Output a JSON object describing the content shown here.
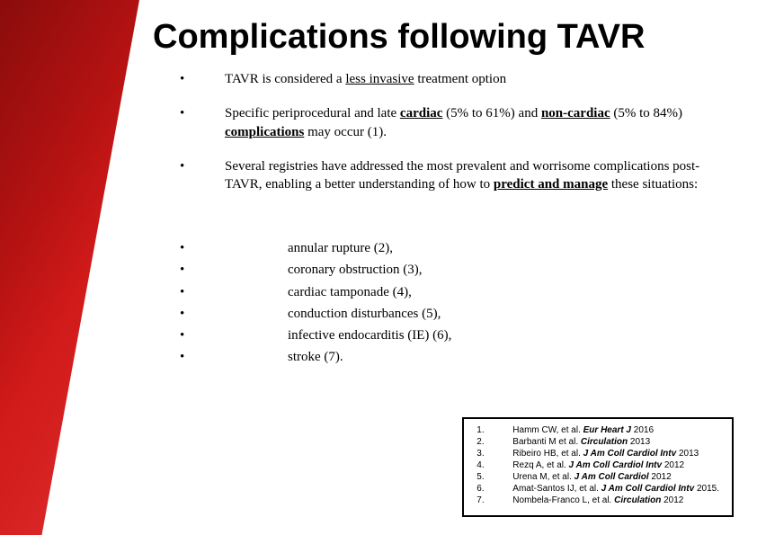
{
  "title": "Complications following TAVR",
  "bullets": [
    {
      "dot": "•",
      "html": "TAVR is considered a <span class='u'>less invasive</span> treatment option"
    },
    {
      "dot": "•",
      "html": "Specific periprocedural and late <span class='u b'>cardiac</span> (5% to 61%) and <span class='u b'>non-cardiac</span> (5% to 84%) <span class='u b'>complications</span> may occur (1)."
    },
    {
      "dot": "•",
      "html": "Several registries have addressed the most prevalent and worrisome complications post-TAVR, enabling a better understanding of how to <span class='u b'>predict and manage</span> these situations:"
    }
  ],
  "subBullets": [
    {
      "dot": "•",
      "text": "annular rupture (2),"
    },
    {
      "dot": "•",
      "text": "coronary obstruction (3),"
    },
    {
      "dot": "•",
      "text": "cardiac tamponade (4),"
    },
    {
      "dot": "•",
      "text": "conduction disturbances (5),"
    },
    {
      "dot": "•",
      "text": "infective endocarditis (IE) (6),"
    },
    {
      "dot": "•",
      "text": "stroke (7)."
    }
  ],
  "refs": [
    {
      "n": "1.",
      "html": "Hamm CW, et al. <span class='i'>Eur Heart J</span> 2016"
    },
    {
      "n": "2.",
      "html": "Barbanti M et al. <span class='i'>Circulation</span> 2013"
    },
    {
      "n": "3.",
      "html": "Ribeiro HB, et al. <span class='i'>J Am Coll Cardiol Intv</span> 2013"
    },
    {
      "n": "4.",
      "html": "Rezq A, et al. <span class='i'>J Am Coll Cardiol Intv</span> 2012"
    },
    {
      "n": "5.",
      "html": "Urena M, et al. <span class='i'>J Am Coll Cardiol</span> 2012"
    },
    {
      "n": "6.",
      "html": "Amat-Santos IJ, et al. <span class='i'>J Am Coll Cardiol Intv</span> 2015."
    },
    {
      "n": "7.",
      "html": "Nombela-Franco L, et al. <span class='i'>Circulation</span> 2012"
    }
  ],
  "colors": {
    "accent_start": "#8a0c0c",
    "accent_end": "#e03030",
    "background": "#ffffff",
    "text": "#000000",
    "border": "#000000"
  }
}
